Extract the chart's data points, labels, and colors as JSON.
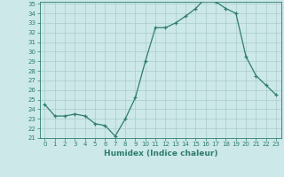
{
  "xlabel": "Humidex (Indice chaleur)",
  "x": [
    0,
    1,
    2,
    3,
    4,
    5,
    6,
    7,
    8,
    9,
    10,
    11,
    12,
    13,
    14,
    15,
    16,
    17,
    18,
    19,
    20,
    21,
    22,
    23
  ],
  "y": [
    24.5,
    23.3,
    23.3,
    23.5,
    23.3,
    22.5,
    22.3,
    21.2,
    23.0,
    25.2,
    29.0,
    32.5,
    32.5,
    33.0,
    33.7,
    34.5,
    35.6,
    35.2,
    34.5,
    34.0,
    29.5,
    27.5,
    26.5,
    25.5
  ],
  "line_color": "#2e7d6e",
  "marker": "+",
  "marker_size": 3,
  "bg_color": "#cce8e8",
  "grid_color": "#aacccc",
  "ylim": [
    21,
    35
  ],
  "xlim": [
    -0.5,
    23.5
  ],
  "yticks": [
    21,
    22,
    23,
    24,
    25,
    26,
    27,
    28,
    29,
    30,
    31,
    32,
    33,
    34,
    35
  ],
  "xticks": [
    0,
    1,
    2,
    3,
    4,
    5,
    6,
    7,
    8,
    9,
    10,
    11,
    12,
    13,
    14,
    15,
    16,
    17,
    18,
    19,
    20,
    21,
    22,
    23
  ],
  "tick_fontsize": 5,
  "label_fontsize": 6.5
}
